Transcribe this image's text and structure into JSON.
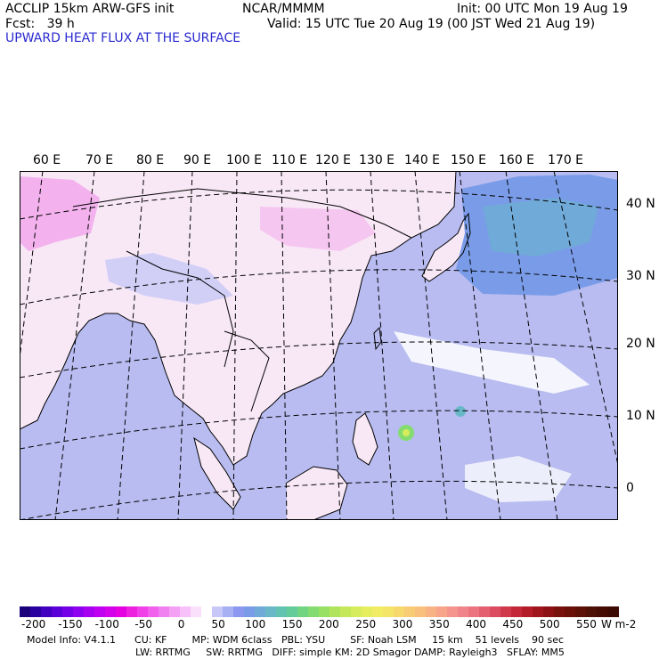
{
  "header": {
    "model_line": "ACCLIP 15km ARW-GFS init",
    "org": "NCAR/MMMM",
    "init": "Init: 00 UTC Mon 19 Aug 19",
    "fcst": "Fcst:   39 h",
    "valid": "Valid: 15 UTC Tue 20 Aug 19 (00 JST Wed 21 Aug 19)",
    "field_title": "UPWARD HEAT FLUX AT THE SURFACE"
  },
  "map": {
    "lon_labels": [
      "60 E",
      "70 E",
      "80 E",
      "90 E",
      "100 E",
      "110 E",
      "120 E",
      "130 E",
      "140 E",
      "150 E",
      "160 E",
      "170 E"
    ],
    "lat_labels": [
      "40 N",
      "30 N",
      "20 N",
      "10 N",
      "0"
    ],
    "land_fill_color": "#f8e8f6",
    "ocean_fill_color": "#b8bcf0",
    "coast_color": "#000000",
    "grid_color": "#000000"
  },
  "colorbar": {
    "labels": [
      "-200",
      "-150",
      "-100",
      "-50",
      "0",
      "50",
      "100",
      "150",
      "200",
      "250",
      "300",
      "350",
      "400",
      "450",
      "500",
      "550"
    ],
    "units": "W m-2",
    "colors": [
      "#1a007a",
      "#2b00a0",
      "#4200c0",
      "#5a00d8",
      "#7400e8",
      "#8e00f0",
      "#a800f0",
      "#c000f0",
      "#d400ea",
      "#e400e0",
      "#ee20e0",
      "#f040e8",
      "#f060ec",
      "#f080f0",
      "#f4a0f4",
      "#f8c0f8",
      "#fae0fa",
      "#ffffff",
      "#c8c8f8",
      "#a8b0f4",
      "#8c98f0",
      "#7a9ce8",
      "#70aad8",
      "#68b8c8",
      "#62c4b0",
      "#64cc98",
      "#70d480",
      "#84dc70",
      "#98e064",
      "#b0e45c",
      "#c4e85a",
      "#d6ec5c",
      "#e6ee60",
      "#f0ec64",
      "#f4e468",
      "#f6d86c",
      "#f8cc74",
      "#f8c07c",
      "#f8b284",
      "#f8a48a",
      "#f4948c",
      "#f0848a",
      "#ec7480",
      "#e46070",
      "#dc4c60",
      "#d0384c",
      "#c42838",
      "#b41c28",
      "#a0141c",
      "#8c1014",
      "#78100c",
      "#6a1008",
      "#5c1006",
      "#4e1004",
      "#440c02",
      "#3c0a02"
    ]
  },
  "model_info": {
    "line1": "Model Info: V4.1.1      CU: KF        MP: WDM 6class   PBL: YSU        SF: Noah LSM     15 km    51 levels    90 sec",
    "line2": "LW: RRTMG     SW: RRTMG   DIFF: simple KM: 2D Smagor DAMP: Rayleigh3   SFLAY: MM5"
  }
}
